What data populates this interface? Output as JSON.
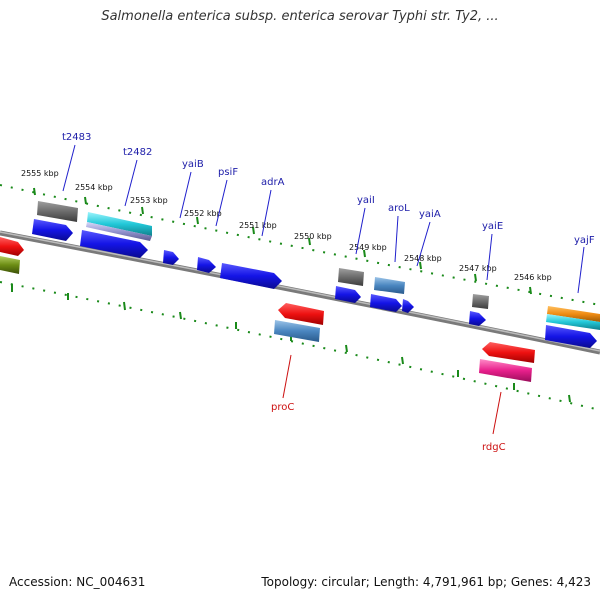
{
  "title": "Salmonella enterica subsp. enterica serovar Typhi str. Ty2, ...",
  "footer": {
    "accession": "Accession: NC_004631",
    "topology": "Topology: circular; Length: 4,791,961 bp; Genes: 4,423"
  },
  "colors": {
    "forward_gene": "#1414e6",
    "reverse_gene": "#ee1111",
    "pseudo_gene": "#6c6c6c",
    "rna_steel": "#4a86c0",
    "cyan_feature": "#22c8d8",
    "orange_feature": "#f08c14",
    "magenta_feature": "#e8208c",
    "olive_feature": "#6c8c14",
    "backbone": "#7a7a7a",
    "tick": "#1a8a1a",
    "label_top": "#2020aa",
    "label_bottom": "#cc1111"
  },
  "kbp_ticks": [
    "2555 kbp",
    "2554 kbp",
    "2553 kbp",
    "2552 kbp",
    "2551 kbp",
    "2550 kbp",
    "2549 kbp",
    "2548 kbp",
    "2547 kbp",
    "2546 kbp"
  ],
  "genes_forward_labels": [
    "t2483",
    "t2482",
    "yaiB",
    "psiF",
    "adrA",
    "yaiI",
    "aroL",
    "yaiA",
    "yaiE",
    "yajF"
  ],
  "genes_reverse_labels": [
    "proC",
    "rdgC"
  ]
}
